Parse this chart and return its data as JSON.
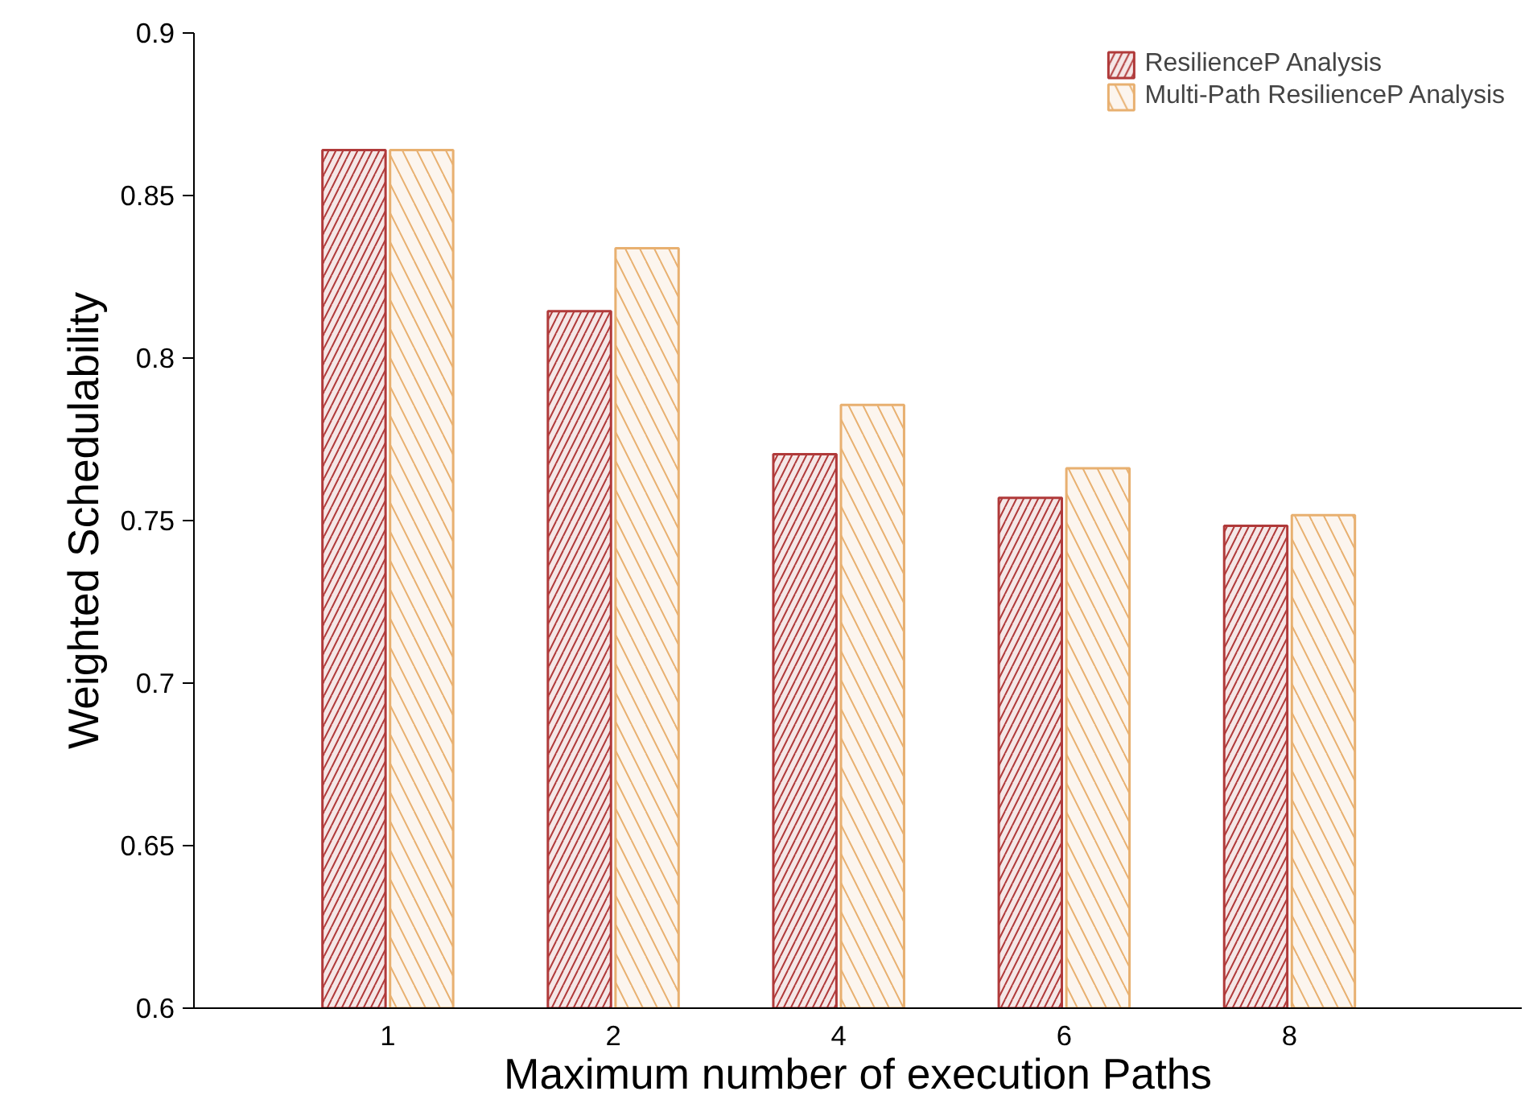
{
  "chart_data": {
    "type": "bar",
    "xlabel": "Maximum number of execution Paths",
    "ylabel": "Weighted Schedulability",
    "categories": [
      "1",
      "2",
      "4",
      "6",
      "8"
    ],
    "series": [
      {
        "name": "ResilienceP Analysis",
        "color": "#b03a3a",
        "values": [
          0.864,
          0.8144,
          0.7704,
          0.757,
          0.7484
        ]
      },
      {
        "name": "Multi-Path ResilienceP Analysis",
        "color": "#e8b070",
        "values": [
          0.864,
          0.8338,
          0.7856,
          0.7661,
          0.7517
        ]
      }
    ],
    "ylim": [
      0.6,
      0.9
    ],
    "yticks": [
      0.6,
      0.65,
      0.7,
      0.75,
      0.8,
      0.85,
      0.9
    ],
    "grid": false,
    "legend": "top right"
  }
}
